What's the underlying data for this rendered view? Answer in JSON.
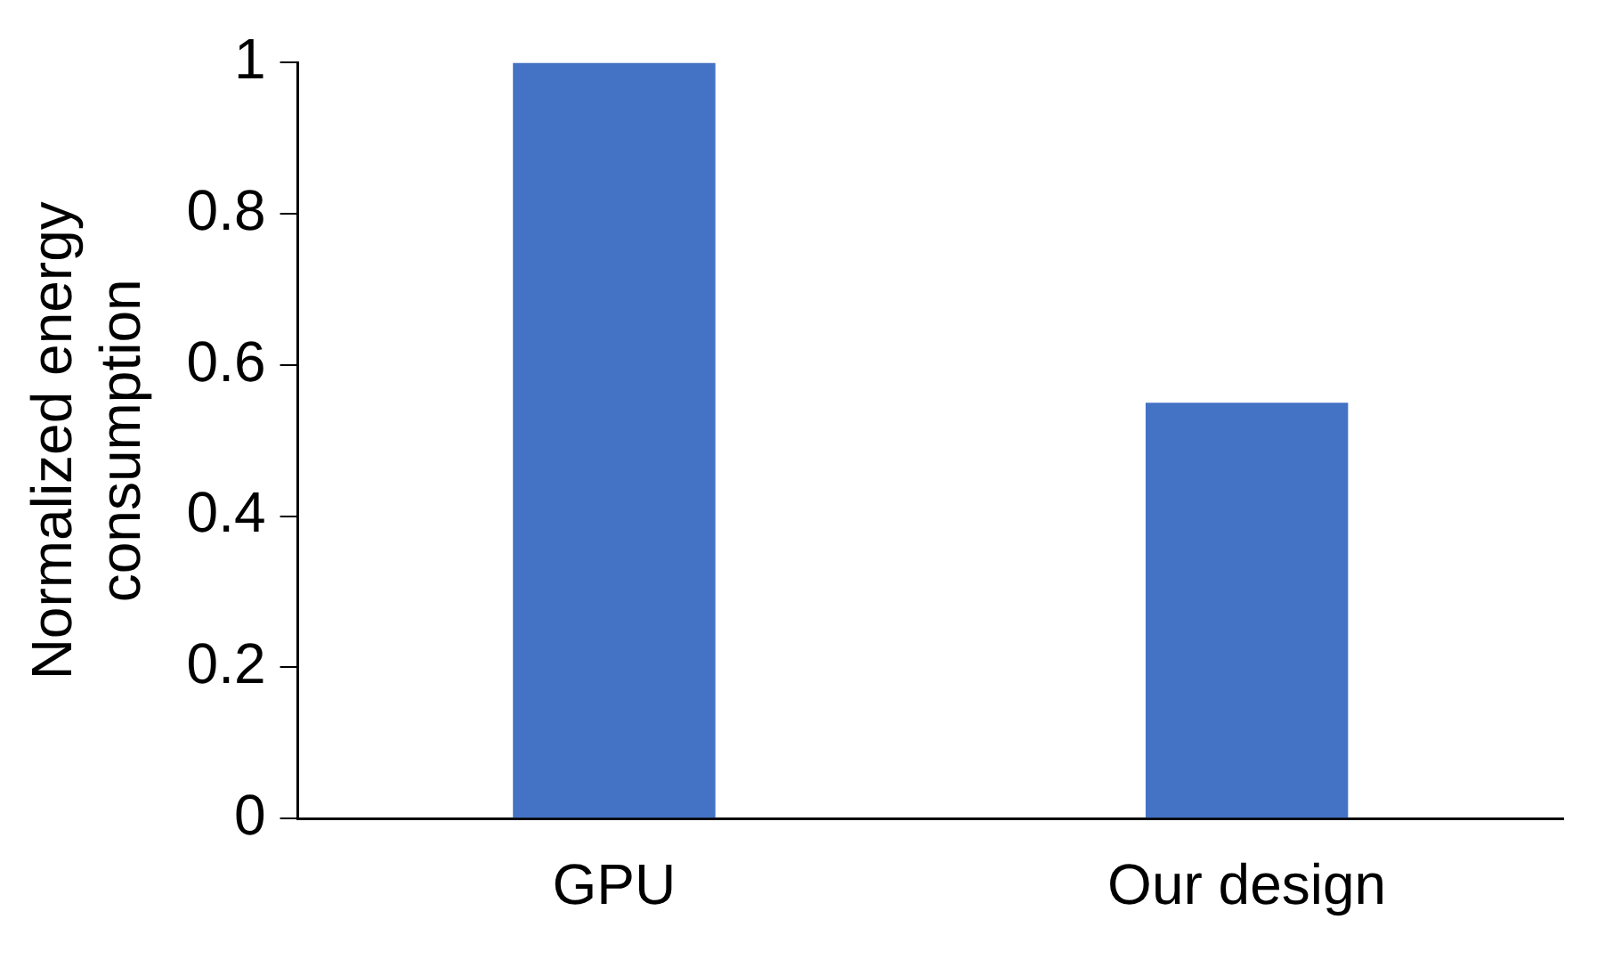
{
  "chart_data": {
    "type": "bar",
    "ylabel": "Normalized energy consumption",
    "categories": [
      "GPU",
      "Our design"
    ],
    "values": [
      1,
      0.55
    ],
    "color": "#4472c4",
    "ylim": [
      0,
      1
    ],
    "yticks": [
      0,
      0.2,
      0.4,
      0.6,
      0.8,
      1
    ],
    "grid": false,
    "legend": false
  }
}
